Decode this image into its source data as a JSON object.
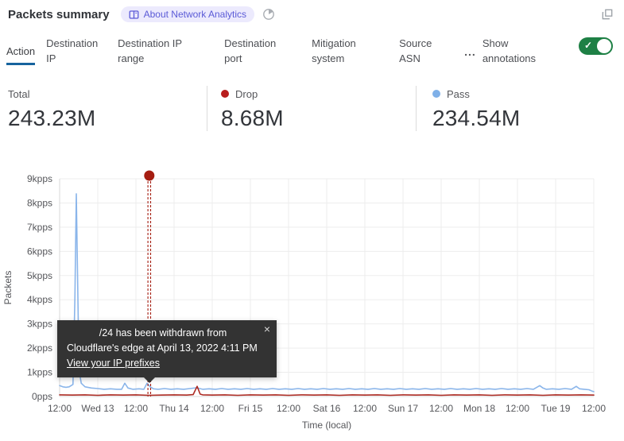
{
  "header": {
    "title": "Packets summary",
    "badge_label": "About Network Analytics"
  },
  "tabs": {
    "items": [
      {
        "label": "Action",
        "active": true
      },
      {
        "label": "Destination IP",
        "active": false
      },
      {
        "label": "Destination IP range",
        "active": false
      },
      {
        "label": "Destination port",
        "active": false
      },
      {
        "label": "Mitigation system",
        "active": false
      },
      {
        "label": "Source ASN",
        "active": false
      }
    ],
    "more_label": "...",
    "show_annotations_label": "Show annotations",
    "annotations_enabled": true
  },
  "stats": [
    {
      "label": "Total",
      "value": "243.23M"
    },
    {
      "label": "Drop",
      "value": "8.68M",
      "dot_color": "#b81d1d"
    },
    {
      "label": "Pass",
      "value": "234.54M",
      "dot_color": "#7fb0e8"
    }
  ],
  "annotation_tooltip": {
    "line1": "/24 has been withdrawn from",
    "line2": "Cloudflare's edge at April 13, 2022 4:11 PM",
    "link": "View your IP prefixes",
    "close": "×"
  },
  "colors": {
    "pass_blue": "#8ab5ea",
    "drop_red": "#ad2c24",
    "annotation_red": "#a51d11",
    "tab_underline_blue": "#16639e",
    "toggle_green": "#1e8045",
    "badge_bg": "#eceafd",
    "badge_text": "#5b5bd7",
    "grid": "#ededed",
    "axis": "#d8d8d8"
  },
  "chart_data": {
    "type": "line",
    "title": "Packets summary",
    "xlabel": "Time (local)",
    "ylabel": "Packets",
    "x_hours_range": [
      0,
      168
    ],
    "ylim_kpps": [
      0,
      9
    ],
    "grid": true,
    "y_ticks": [
      "0pps",
      "1kpps",
      "2kpps",
      "3kpps",
      "4kpps",
      "5kpps",
      "6kpps",
      "7kpps",
      "8kpps",
      "9kpps"
    ],
    "x_ticks": [
      {
        "t": 0,
        "label": "12:00"
      },
      {
        "t": 12,
        "label": "Wed 13"
      },
      {
        "t": 24,
        "label": "12:00"
      },
      {
        "t": 36,
        "label": "Thu 14"
      },
      {
        "t": 48,
        "label": "12:00"
      },
      {
        "t": 60,
        "label": "Fri 15"
      },
      {
        "t": 72,
        "label": "12:00"
      },
      {
        "t": 84,
        "label": "Sat 16"
      },
      {
        "t": 96,
        "label": "12:00"
      },
      {
        "t": 108,
        "label": "Sun 17"
      },
      {
        "t": 120,
        "label": "12:00"
      },
      {
        "t": 132,
        "label": "Mon 18"
      },
      {
        "t": 144,
        "label": "12:00"
      },
      {
        "t": 156,
        "label": "Tue 19"
      },
      {
        "t": 168,
        "label": "12:00"
      }
    ],
    "series": [
      {
        "name": "Pass",
        "color": "#8ab5ea",
        "points": [
          [
            0,
            0.45
          ],
          [
            1,
            0.4
          ],
          [
            2,
            0.38
          ],
          [
            3,
            0.4
          ],
          [
            4.2,
            0.5
          ],
          [
            4.8,
            4.0
          ],
          [
            5.25,
            8.38
          ],
          [
            5.7,
            4.5
          ],
          [
            6.1,
            1.1
          ],
          [
            6.8,
            0.55
          ],
          [
            8,
            0.4
          ],
          [
            10,
            0.35
          ],
          [
            12,
            0.33
          ],
          [
            14,
            0.3
          ],
          [
            16,
            0.32
          ],
          [
            18,
            0.3
          ],
          [
            19.5,
            0.3
          ],
          [
            20.5,
            0.55
          ],
          [
            21.5,
            0.35
          ],
          [
            23,
            0.3
          ],
          [
            25,
            0.32
          ],
          [
            26.5,
            0.3
          ],
          [
            27.5,
            0.55
          ],
          [
            28.5,
            0.4
          ],
          [
            29.5,
            0.32
          ],
          [
            31,
            0.3
          ],
          [
            33,
            0.33
          ],
          [
            35,
            0.3
          ],
          [
            37,
            0.32
          ],
          [
            39,
            0.3
          ],
          [
            41,
            0.33
          ],
          [
            43,
            0.36
          ],
          [
            45,
            0.3
          ],
          [
            47,
            0.32
          ],
          [
            49,
            0.3
          ],
          [
            51,
            0.33
          ],
          [
            53,
            0.3
          ],
          [
            55,
            0.32
          ],
          [
            57,
            0.3
          ],
          [
            59,
            0.33
          ],
          [
            61,
            0.3
          ],
          [
            63,
            0.32
          ],
          [
            65,
            0.3
          ],
          [
            67,
            0.33
          ],
          [
            69,
            0.3
          ],
          [
            71,
            0.32
          ],
          [
            73,
            0.3
          ],
          [
            75,
            0.33
          ],
          [
            77,
            0.3
          ],
          [
            79,
            0.32
          ],
          [
            81,
            0.3
          ],
          [
            83,
            0.33
          ],
          [
            85,
            0.3
          ],
          [
            87,
            0.32
          ],
          [
            89,
            0.3
          ],
          [
            91,
            0.33
          ],
          [
            93,
            0.3
          ],
          [
            95,
            0.32
          ],
          [
            97,
            0.3
          ],
          [
            99,
            0.33
          ],
          [
            101,
            0.3
          ],
          [
            103,
            0.32
          ],
          [
            105,
            0.3
          ],
          [
            107,
            0.33
          ],
          [
            109,
            0.3
          ],
          [
            111,
            0.32
          ],
          [
            113,
            0.3
          ],
          [
            115,
            0.33
          ],
          [
            117,
            0.3
          ],
          [
            119,
            0.32
          ],
          [
            121,
            0.3
          ],
          [
            123,
            0.33
          ],
          [
            125,
            0.3
          ],
          [
            127,
            0.32
          ],
          [
            129,
            0.3
          ],
          [
            131,
            0.33
          ],
          [
            133,
            0.3
          ],
          [
            135,
            0.32
          ],
          [
            137,
            0.3
          ],
          [
            139,
            0.33
          ],
          [
            141,
            0.3
          ],
          [
            143,
            0.32
          ],
          [
            145,
            0.3
          ],
          [
            147,
            0.33
          ],
          [
            149,
            0.3
          ],
          [
            151,
            0.45
          ],
          [
            152,
            0.35
          ],
          [
            153,
            0.3
          ],
          [
            155,
            0.32
          ],
          [
            157,
            0.3
          ],
          [
            159,
            0.33
          ],
          [
            161,
            0.3
          ],
          [
            162.5,
            0.42
          ],
          [
            163.5,
            0.32
          ],
          [
            165,
            0.3
          ],
          [
            166.5,
            0.28
          ],
          [
            167.5,
            0.22
          ],
          [
            168,
            0.2
          ]
        ]
      },
      {
        "name": "Drop",
        "color": "#ad2c24",
        "points": [
          [
            0,
            0.07
          ],
          [
            4,
            0.06
          ],
          [
            8,
            0.07
          ],
          [
            12,
            0.05
          ],
          [
            16,
            0.07
          ],
          [
            20,
            0.06
          ],
          [
            24,
            0.07
          ],
          [
            28,
            0.05
          ],
          [
            32,
            0.06
          ],
          [
            36,
            0.07
          ],
          [
            40,
            0.06
          ],
          [
            42,
            0.08
          ],
          [
            43.25,
            0.42
          ],
          [
            44.2,
            0.1
          ],
          [
            45,
            0.07
          ],
          [
            48,
            0.06
          ],
          [
            52,
            0.07
          ],
          [
            56,
            0.05
          ],
          [
            60,
            0.07
          ],
          [
            64,
            0.06
          ],
          [
            68,
            0.07
          ],
          [
            72,
            0.05
          ],
          [
            76,
            0.07
          ],
          [
            80,
            0.06
          ],
          [
            84,
            0.07
          ],
          [
            88,
            0.05
          ],
          [
            92,
            0.07
          ],
          [
            96,
            0.06
          ],
          [
            100,
            0.07
          ],
          [
            104,
            0.05
          ],
          [
            108,
            0.07
          ],
          [
            112,
            0.06
          ],
          [
            116,
            0.07
          ],
          [
            120,
            0.05
          ],
          [
            124,
            0.07
          ],
          [
            128,
            0.06
          ],
          [
            132,
            0.07
          ],
          [
            136,
            0.05
          ],
          [
            140,
            0.07
          ],
          [
            144,
            0.06
          ],
          [
            148,
            0.07
          ],
          [
            152,
            0.05
          ],
          [
            156,
            0.07
          ],
          [
            160,
            0.06
          ],
          [
            164,
            0.07
          ],
          [
            168,
            0.06
          ]
        ]
      }
    ],
    "annotation": {
      "t": 28.2,
      "color": "#a51d11",
      "style": "double-dashed-vertical-with-dot"
    },
    "legend_position": "top-stats-row"
  }
}
